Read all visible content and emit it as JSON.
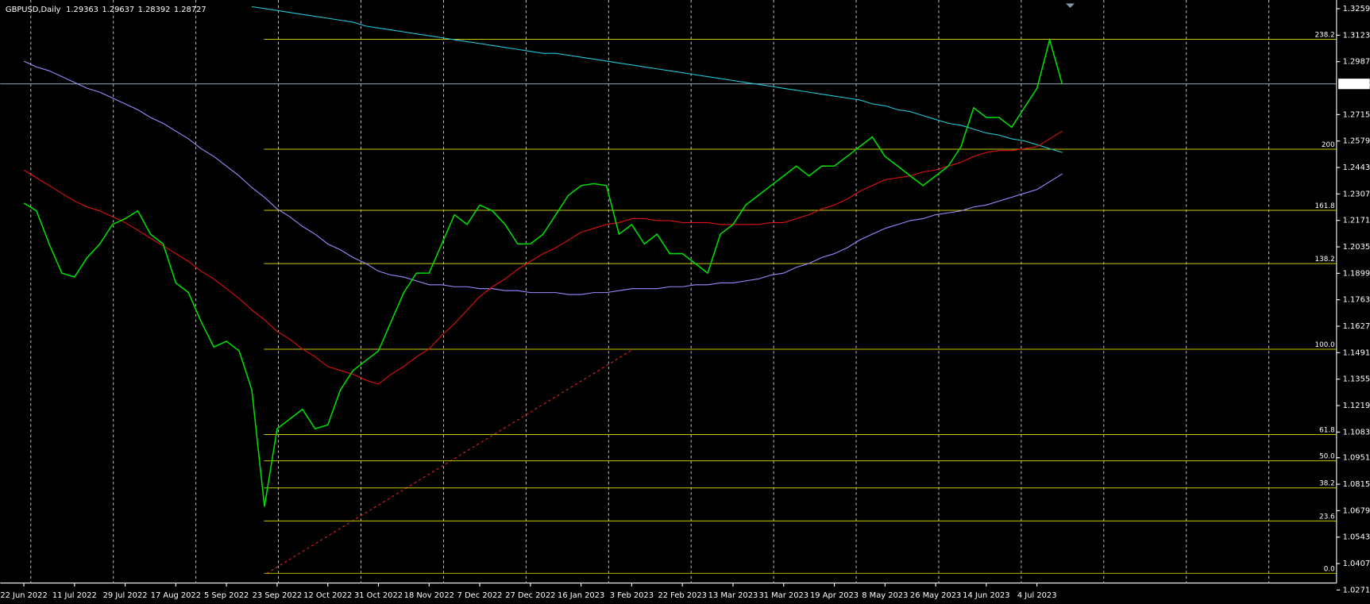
{
  "chart_data": {
    "type": "line",
    "title": "GBPUSD,Daily",
    "quote": [
      1.29363,
      1.29637,
      1.28392,
      1.28727
    ],
    "current_price": 1.28727,
    "categories": [
      "22 Jun 2022",
      null,
      null,
      null,
      "11 Jul 2022",
      null,
      null,
      null,
      "29 Jul 2022",
      null,
      null,
      null,
      "17 Aug 2022",
      null,
      null,
      null,
      "5 Sep 2022",
      null,
      null,
      null,
      "23 Sep 2022",
      null,
      null,
      null,
      "12 Oct 2022",
      null,
      null,
      null,
      "31 Oct 2022",
      null,
      null,
      null,
      "18 Nov 2022",
      null,
      null,
      null,
      "7 Dec 2022",
      null,
      null,
      null,
      "27 Dec 2022",
      null,
      null,
      null,
      "16 Jan 2023",
      null,
      null,
      null,
      "3 Feb 2023",
      null,
      null,
      null,
      "22 Feb 2023",
      null,
      null,
      null,
      "13 Mar 2023",
      null,
      null,
      null,
      "31 Mar 2023",
      null,
      null,
      null,
      "19 Apr 2023",
      null,
      null,
      null,
      "8 May 2023",
      null,
      null,
      null,
      "26 May 2023",
      null,
      null,
      null,
      "14 Jun 2023",
      null,
      null,
      null,
      "4 Jul 2023",
      null,
      null
    ],
    "series": [
      {
        "color": "#00e000",
        "values": [
          1.226,
          1.222,
          1.205,
          1.19,
          1.188,
          1.198,
          1.205,
          1.215,
          1.218,
          1.222,
          1.21,
          1.205,
          1.185,
          1.18,
          1.165,
          1.152,
          1.155,
          1.15,
          1.13,
          1.07,
          1.11,
          1.115,
          1.12,
          1.11,
          1.112,
          1.13,
          1.14,
          1.145,
          1.15,
          1.165,
          1.18,
          1.19,
          1.19,
          1.205,
          1.22,
          1.215,
          1.225,
          1.222,
          1.215,
          1.205,
          1.205,
          1.21,
          1.22,
          1.23,
          1.235,
          1.236,
          1.235,
          1.21,
          1.215,
          1.205,
          1.21,
          1.2,
          1.2,
          1.195,
          1.19,
          1.21,
          1.215,
          1.225,
          1.23,
          1.235,
          1.24,
          1.245,
          1.24,
          1.245,
          1.245,
          1.25,
          1.255,
          1.26,
          1.25,
          1.245,
          1.24,
          1.235,
          1.24,
          1.245,
          1.255,
          1.275,
          1.27,
          1.27,
          1.265,
          1.275,
          1.285,
          1.31,
          1.287
        ]
      },
      {
        "color": "#e01010",
        "values": [
          1.243,
          1.239,
          1.235,
          1.231,
          1.227,
          1.224,
          1.222,
          1.219,
          1.216,
          1.212,
          1.208,
          1.204,
          1.2,
          1.196,
          1.191,
          1.187,
          1.182,
          1.177,
          1.171,
          1.166,
          1.16,
          1.156,
          1.151,
          1.147,
          1.142,
          1.14,
          1.138,
          1.135,
          1.133,
          1.138,
          1.142,
          1.147,
          1.151,
          1.158,
          1.164,
          1.171,
          1.178,
          1.183,
          1.187,
          1.192,
          1.196,
          1.2,
          1.203,
          1.207,
          1.211,
          1.213,
          1.215,
          1.216,
          1.218,
          1.218,
          1.217,
          1.217,
          1.216,
          1.216,
          1.216,
          1.215,
          1.215,
          1.215,
          1.215,
          1.216,
          1.216,
          1.218,
          1.22,
          1.223,
          1.225,
          1.228,
          1.232,
          1.235,
          1.238,
          1.239,
          1.24,
          1.242,
          1.243,
          1.245,
          1.247,
          1.25,
          1.252,
          1.253,
          1.253,
          1.254,
          1.255,
          1.259,
          1.263
        ]
      },
      {
        "color": "#9a8cff",
        "values": [
          1.299,
          1.296,
          1.294,
          1.291,
          1.288,
          1.285,
          1.283,
          1.28,
          1.277,
          1.274,
          1.27,
          1.267,
          1.263,
          1.259,
          1.254,
          1.25,
          1.245,
          1.24,
          1.234,
          1.229,
          1.223,
          1.219,
          1.214,
          1.21,
          1.205,
          1.202,
          1.198,
          1.195,
          1.191,
          1.189,
          1.188,
          1.186,
          1.184,
          1.184,
          1.183,
          1.183,
          1.182,
          1.182,
          1.181,
          1.181,
          1.18,
          1.18,
          1.18,
          1.179,
          1.179,
          1.18,
          1.18,
          1.181,
          1.182,
          1.182,
          1.182,
          1.183,
          1.183,
          1.184,
          1.184,
          1.185,
          1.185,
          1.186,
          1.187,
          1.189,
          1.19,
          1.193,
          1.195,
          1.198,
          1.2,
          1.203,
          1.207,
          1.21,
          1.213,
          1.215,
          1.217,
          1.218,
          1.22,
          1.221,
          1.222,
          1.224,
          1.225,
          1.227,
          1.229,
          1.231,
          1.233,
          1.237,
          1.241
        ]
      },
      {
        "color": "#20c8d8",
        "values": [
          null,
          null,
          null,
          null,
          null,
          null,
          null,
          null,
          null,
          null,
          null,
          null,
          null,
          null,
          null,
          null,
          null,
          null,
          1.327,
          1.326,
          1.325,
          1.324,
          1.323,
          1.322,
          1.321,
          1.32,
          1.319,
          1.317,
          1.316,
          1.315,
          1.314,
          1.313,
          1.312,
          1.311,
          1.31,
          1.309,
          1.308,
          1.307,
          1.306,
          1.305,
          1.304,
          1.303,
          1.303,
          1.302,
          1.301,
          1.3,
          1.299,
          1.298,
          1.297,
          1.296,
          1.295,
          1.294,
          1.293,
          1.292,
          1.291,
          1.29,
          1.289,
          1.288,
          1.287,
          1.286,
          1.285,
          1.284,
          1.283,
          1.282,
          1.281,
          1.28,
          1.279,
          1.277,
          1.276,
          1.274,
          1.273,
          1.271,
          1.269,
          1.267,
          1.266,
          1.264,
          1.262,
          1.261,
          1.259,
          1.258,
          1.256,
          1.254,
          1.252
        ]
      }
    ],
    "fib_levels": [
      {
        "label": "0.0",
        "price": 1.0357
      },
      {
        "label": "23.6",
        "price": 1.0626
      },
      {
        "label": "38.2",
        "price": 1.0796
      },
      {
        "label": "50.0",
        "price": 1.0935
      },
      {
        "label": "61.8",
        "price": 1.107
      },
      {
        "label": "100.0",
        "price": 1.1509
      },
      {
        "label": "138.2",
        "price": 1.1949
      },
      {
        "label": "161.8",
        "price": 1.2223
      },
      {
        "label": "200",
        "price": 1.2537
      },
      {
        "label": "238.2",
        "price": 1.3102
      }
    ],
    "fib_color": "#c8c800",
    "ylim": [
      1.0253,
      1.3286
    ],
    "yticks": [
      {
        "value": 1.3259,
        "label": "1.32590"
      },
      {
        "value": 1.3123,
        "label": "1.31230"
      },
      {
        "value": 1.2987,
        "label": "1.29870"
      },
      {
        "value": 1.2715,
        "label": "1.27150"
      },
      {
        "value": 1.2579,
        "label": "1.25790"
      },
      {
        "value": 1.2443,
        "label": "1.24430"
      },
      {
        "value": 1.2307,
        "label": "1.23070"
      },
      {
        "value": 1.2171,
        "label": "1.21710"
      },
      {
        "value": 1.2035,
        "label": "1.20350"
      },
      {
        "value": 1.1899,
        "label": "1.18990"
      },
      {
        "value": 1.1763,
        "label": "1.17630"
      },
      {
        "value": 1.1627,
        "label": "1.16270"
      },
      {
        "value": 1.1491,
        "label": "1.14910"
      },
      {
        "value": 1.1355,
        "label": "1.13550"
      },
      {
        "value": 1.1219,
        "label": "1.12190"
      },
      {
        "value": 1.1083,
        "label": "1.10830"
      },
      {
        "value": 1.0951,
        "label": "1.09510"
      },
      {
        "value": 1.0815,
        "label": "1.08150"
      },
      {
        "value": 1.0679,
        "label": "1.06790"
      },
      {
        "value": 1.0543,
        "label": "1.05430"
      },
      {
        "value": 1.0407,
        "label": "1.04070"
      },
      {
        "value": 1.0271,
        "label": "1.02710"
      }
    ],
    "grid": true
  }
}
